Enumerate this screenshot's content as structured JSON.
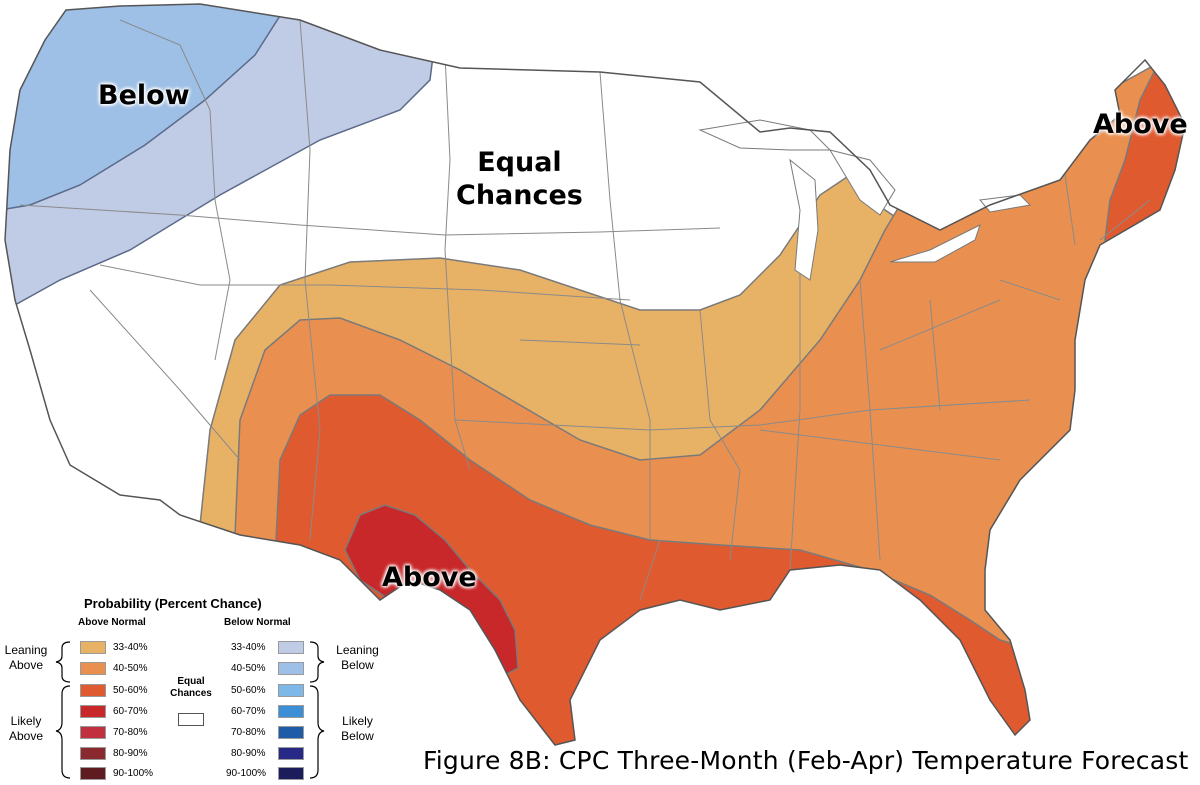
{
  "map_labels": {
    "below": "Below",
    "equal_line1": "Equal",
    "equal_line2": "Chances",
    "above_northeast": "Above",
    "above_south": "Above"
  },
  "caption": "Figure 8B: CPC Three-Month (Feb-Apr) Temperature Forecast",
  "legend": {
    "title": "Probability (Percent Chance)",
    "above_header": "Above Normal",
    "below_header": "Below Normal",
    "equal_line1": "Equal",
    "equal_line2": "Chances",
    "leaning_above_1": "Leaning",
    "leaning_above_2": "Above",
    "likely_above_1": "Likely",
    "likely_above_2": "Above",
    "leaning_below_1": "Leaning",
    "leaning_below_2": "Below",
    "likely_below_1": "Likely",
    "likely_below_2": "Below",
    "above": [
      {
        "label": "33-40%",
        "color": "#e8b266"
      },
      {
        "label": "40-50%",
        "color": "#e99050"
      },
      {
        "label": "50-60%",
        "color": "#e05a30"
      },
      {
        "label": "60-70%",
        "color": "#c8282a"
      },
      {
        "label": "70-80%",
        "color": "#c0303e"
      },
      {
        "label": "80-90%",
        "color": "#8a2a2e"
      },
      {
        "label": "90-100%",
        "color": "#5e1c20"
      }
    ],
    "below": [
      {
        "label": "33-40%",
        "color": "#c0cbe6"
      },
      {
        "label": "40-50%",
        "color": "#9ec0e6"
      },
      {
        "label": "50-60%",
        "color": "#7db8e8"
      },
      {
        "label": "60-70%",
        "color": "#3c8fd6"
      },
      {
        "label": "70-80%",
        "color": "#1f5ca8"
      },
      {
        "label": "80-90%",
        "color": "#262a86"
      },
      {
        "label": "90-100%",
        "color": "#1c1b5c"
      }
    ],
    "equal_color": "#ffffff"
  }
}
